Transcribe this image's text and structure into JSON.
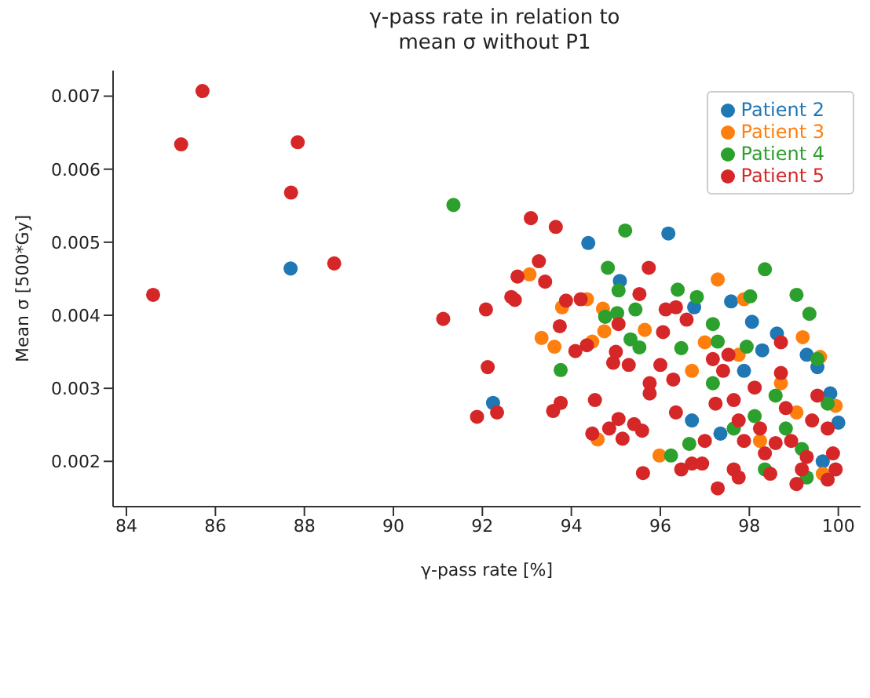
{
  "chart_data": {
    "type": "scatter",
    "title": "γ-pass rate in relation to\nmean σ without P1",
    "xlabel": "γ-pass rate [%]",
    "ylabel": "Mean σ [500*Gy]",
    "xlim": [
      83.7,
      100.5
    ],
    "ylim": [
      0.00138,
      0.00735
    ],
    "xticks": [
      84,
      86,
      88,
      90,
      92,
      94,
      96,
      98,
      100
    ],
    "yticks": [
      0.002,
      0.003,
      0.004,
      0.005,
      0.006,
      0.007
    ],
    "grid": false,
    "legend": "top right",
    "marker": "circle",
    "series": [
      {
        "name": "Patient 2",
        "color": "#1f77b4",
        "x": [
          87.69,
          94.38,
          96.18,
          92.24,
          95.09,
          97.59,
          98.06,
          98.62,
          96.76,
          98.29,
          99.29,
          99.53,
          99.82,
          100.0,
          97.35,
          96.71,
          97.88,
          99.65
        ],
        "values": [
          0.00464,
          0.00499,
          0.00512,
          0.0028,
          0.00447,
          0.00419,
          0.00391,
          0.00375,
          0.00411,
          0.00352,
          0.00346,
          0.00329,
          0.00293,
          0.00253,
          0.00238,
          0.00256,
          0.00324,
          0.002
        ]
      },
      {
        "name": "Patient 3",
        "color": "#ff7f0e",
        "x": [
          93.06,
          93.79,
          94.35,
          94.71,
          94.74,
          93.33,
          93.62,
          94.47,
          95.65,
          94.59,
          95.98,
          97.29,
          97.88,
          99.2,
          99.59,
          97.0,
          97.76,
          98.71,
          99.94,
          99.06,
          98.24,
          99.65,
          96.71
        ],
        "values": [
          0.00456,
          0.00411,
          0.00422,
          0.00409,
          0.00378,
          0.00369,
          0.00357,
          0.00364,
          0.0038,
          0.0023,
          0.00208,
          0.00449,
          0.00422,
          0.0037,
          0.00343,
          0.00363,
          0.00346,
          0.00307,
          0.00276,
          0.00267,
          0.00228,
          0.00183,
          0.00324
        ]
      },
      {
        "name": "Patient 4",
        "color": "#2ca02c",
        "x": [
          91.35,
          95.21,
          94.82,
          98.35,
          95.06,
          96.39,
          96.82,
          98.02,
          99.06,
          99.35,
          94.76,
          95.03,
          95.44,
          93.76,
          95.33,
          95.53,
          96.47,
          97.18,
          97.29,
          97.94,
          96.24,
          96.65,
          97.65,
          98.12,
          98.82,
          99.18,
          99.76,
          99.53,
          99.29,
          98.59,
          97.18,
          98.35
        ],
        "values": [
          0.00551,
          0.00516,
          0.00465,
          0.00463,
          0.00434,
          0.00435,
          0.00425,
          0.00426,
          0.00428,
          0.00402,
          0.00398,
          0.00403,
          0.00408,
          0.00325,
          0.00367,
          0.00356,
          0.00355,
          0.00388,
          0.00364,
          0.00357,
          0.00208,
          0.00224,
          0.00245,
          0.00262,
          0.00245,
          0.00217,
          0.00279,
          0.0034,
          0.00178,
          0.0029,
          0.00307,
          0.00189
        ]
      },
      {
        "name": "Patient 5",
        "color": "#d62728",
        "x": [
          84.6,
          85.23,
          85.71,
          87.85,
          87.7,
          88.67,
          91.12,
          92.08,
          92.12,
          91.88,
          92.33,
          93.09,
          93.65,
          93.27,
          92.79,
          93.41,
          92.65,
          92.73,
          93.74,
          94.09,
          94.35,
          93.88,
          94.21,
          93.76,
          93.59,
          94.53,
          94.47,
          94.85,
          95.06,
          95.15,
          95.41,
          95.59,
          95.61,
          95.74,
          95.53,
          95.06,
          95.0,
          94.94,
          95.29,
          95.76,
          95.76,
          96.0,
          96.06,
          96.12,
          96.35,
          96.59,
          96.29,
          96.35,
          96.47,
          96.71,
          96.94,
          97.0,
          97.24,
          97.29,
          97.41,
          97.53,
          97.65,
          97.76,
          97.88,
          97.65,
          97.76,
          98.12,
          98.24,
          98.35,
          98.47,
          98.71,
          98.71,
          98.82,
          98.94,
          99.06,
          99.29,
          99.41,
          99.53,
          99.76,
          99.88,
          99.76,
          99.94,
          99.18,
          98.59,
          97.18
        ],
        "values": [
          0.00428,
          0.00634,
          0.00707,
          0.00637,
          0.00568,
          0.00471,
          0.00395,
          0.00408,
          0.00329,
          0.00261,
          0.00267,
          0.00533,
          0.00521,
          0.00474,
          0.00453,
          0.00446,
          0.00425,
          0.00421,
          0.00385,
          0.00351,
          0.00359,
          0.0042,
          0.00422,
          0.0028,
          0.00269,
          0.00284,
          0.00238,
          0.00245,
          0.00258,
          0.00231,
          0.00251,
          0.00242,
          0.00184,
          0.00465,
          0.00429,
          0.00388,
          0.0035,
          0.00335,
          0.00332,
          0.00307,
          0.00293,
          0.00332,
          0.00377,
          0.00408,
          0.00411,
          0.00394,
          0.00312,
          0.00267,
          0.00189,
          0.00197,
          0.00197,
          0.00228,
          0.00279,
          0.00163,
          0.00324,
          0.00346,
          0.00284,
          0.00256,
          0.00228,
          0.00189,
          0.00178,
          0.00301,
          0.00245,
          0.00211,
          0.00183,
          0.00363,
          0.00321,
          0.00273,
          0.00228,
          0.00169,
          0.00206,
          0.00256,
          0.0029,
          0.00245,
          0.00211,
          0.00175,
          0.00189,
          0.00189,
          0.00225,
          0.0034
        ]
      }
    ]
  }
}
